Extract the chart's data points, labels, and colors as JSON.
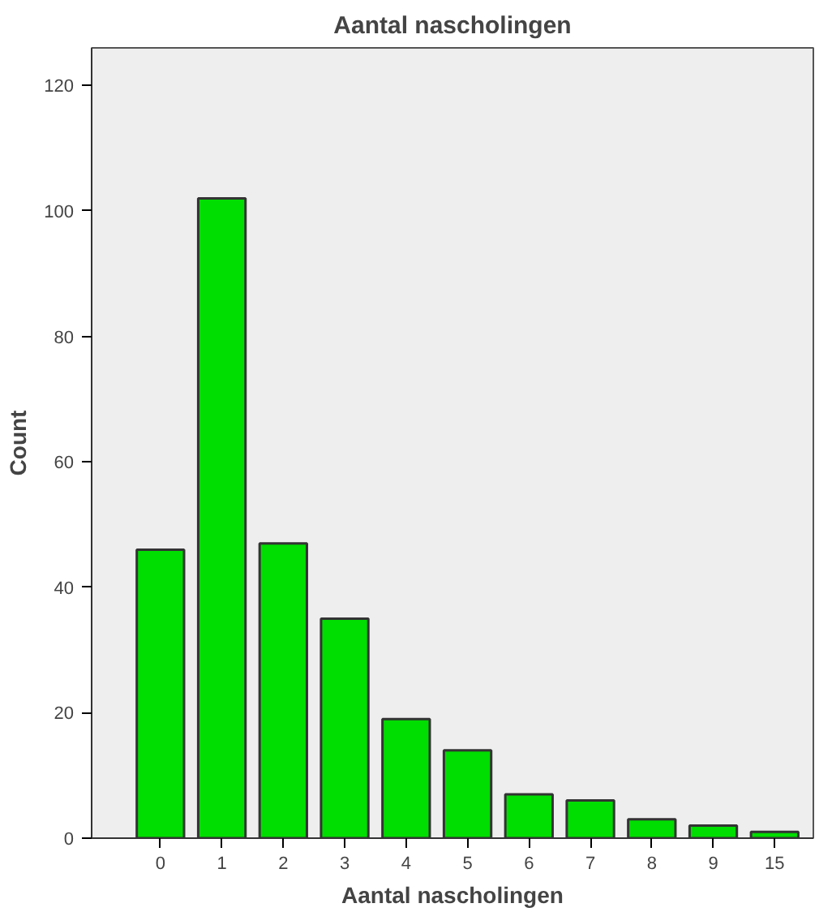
{
  "chart_data": {
    "type": "bar",
    "title": "Aantal nascholingen",
    "xlabel": "Aantal nascholingen",
    "ylabel": "Count",
    "categories": [
      "0",
      "1",
      "2",
      "3",
      "4",
      "5",
      "6",
      "7",
      "8",
      "9",
      "15"
    ],
    "values": [
      46,
      102,
      47,
      35,
      19,
      14,
      7,
      6,
      3,
      2,
      1
    ],
    "color": "#00dd00",
    "ylim": [
      0,
      126
    ],
    "yticks": [
      0,
      20,
      40,
      60,
      80,
      100,
      120
    ],
    "grid": false
  }
}
